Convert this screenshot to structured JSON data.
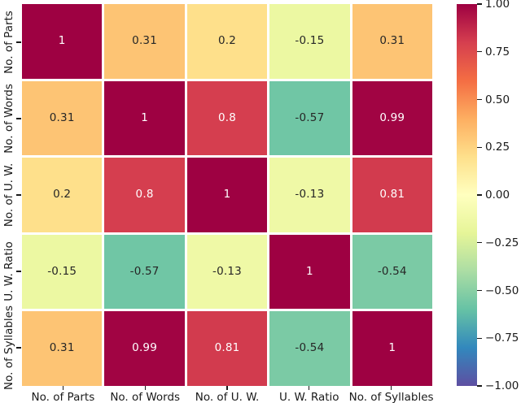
{
  "chart_data": {
    "type": "heatmap",
    "title": "",
    "x_categories": [
      "No. of Parts",
      "No. of Words",
      "No. of U. W.",
      "U. W. Ratio",
      "No. of Syllables"
    ],
    "y_categories": [
      "No. of Parts",
      "No. of Words",
      "No. of U. W.",
      "U. W. Ratio",
      "No. of Syllables"
    ],
    "matrix": [
      [
        1,
        0.31,
        0.2,
        -0.15,
        0.31
      ],
      [
        0.31,
        1,
        0.8,
        -0.57,
        0.99
      ],
      [
        0.2,
        0.8,
        1,
        -0.13,
        0.81
      ],
      [
        -0.15,
        -0.57,
        -0.13,
        1,
        -0.54
      ],
      [
        0.31,
        0.99,
        0.81,
        -0.54,
        1
      ]
    ],
    "annotations": [
      [
        "1",
        "0.31",
        "0.2",
        "-0.15",
        "0.31"
      ],
      [
        "0.31",
        "1",
        "0.8",
        "-0.57",
        "0.99"
      ],
      [
        "0.2",
        "0.8",
        "1",
        "-0.13",
        "0.81"
      ],
      [
        "-0.15",
        "-0.57",
        "-0.13",
        "1",
        "-0.54"
      ],
      [
        "0.31",
        "0.99",
        "0.81",
        "-0.54",
        "1"
      ]
    ],
    "vmin": -1,
    "vmax": 1,
    "colormap": {
      "name": "Spectral_r",
      "stops": [
        "#5e4fa2",
        "#3288bd",
        "#66c2a5",
        "#abdda4",
        "#e6f598",
        "#ffffbf",
        "#fee08b",
        "#fdae61",
        "#f46d43",
        "#d53e4f",
        "#9e0142"
      ]
    },
    "colorbar": {
      "tick_labels": [
        "1.00",
        "0.75",
        "0.50",
        "0.25",
        "0.00",
        "−0.25",
        "−0.50",
        "−0.75",
        "−1.00"
      ],
      "tick_values": [
        1,
        0.75,
        0.5,
        0.25,
        0,
        -0.25,
        -0.5,
        -0.75,
        -1
      ]
    },
    "grid_line_color": "#ffffff",
    "annotation_dark_color": "#262626",
    "annotation_light_color": "#ffffff",
    "tick_color": "#1a1a1a",
    "background": "#ffffff",
    "legend_position": "right",
    "grid": false
  }
}
